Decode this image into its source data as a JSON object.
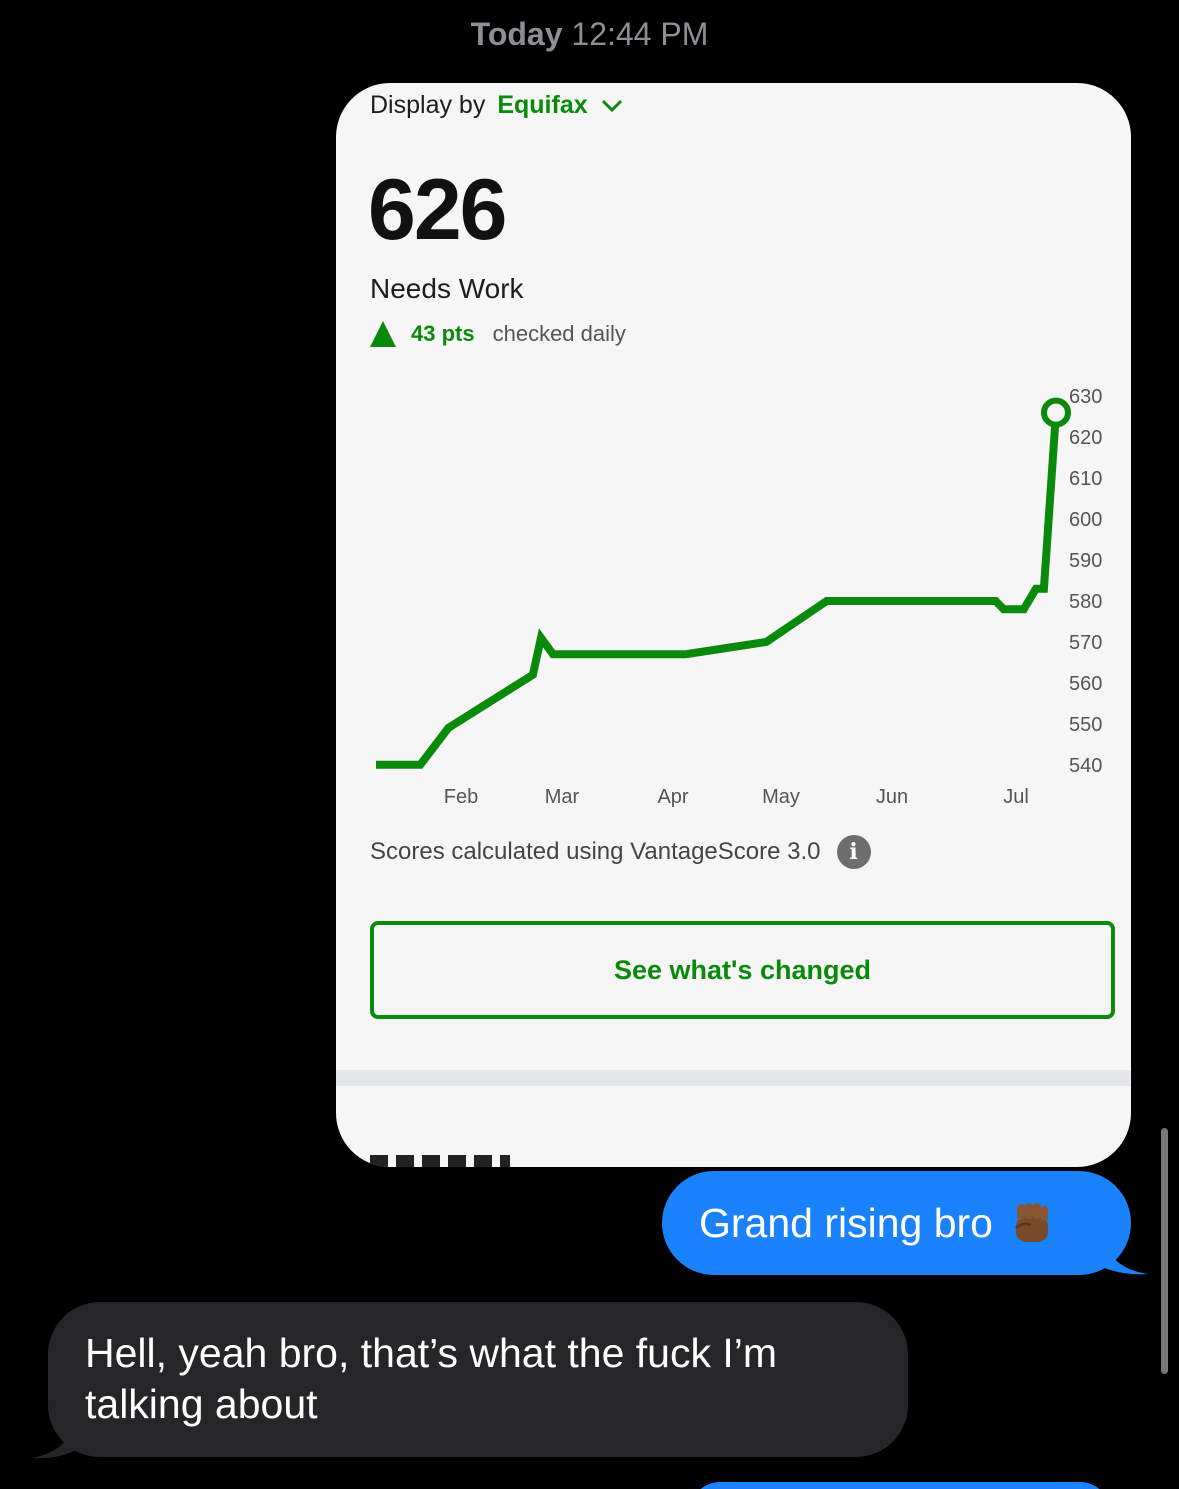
{
  "timestamp": {
    "day": "Today",
    "time": "12:44 PM"
  },
  "card": {
    "display_by_label": "Display by",
    "provider": "Equifax",
    "score": "626",
    "rating": "Needs Work",
    "change_pts": "43 pts",
    "change_note": "checked daily",
    "scores_note": "Scores calculated using VantageScore 3.0",
    "info_icon_glyph": "i",
    "see_button_label": "See what's changed"
  },
  "chart_data": {
    "type": "line",
    "title": "",
    "xlabel": "",
    "ylabel": "",
    "x_ticks": [
      "Feb",
      "Mar",
      "Apr",
      "May",
      "Jun",
      "Jul"
    ],
    "y_ticks": [
      630,
      620,
      610,
      600,
      590,
      580,
      570,
      560,
      550,
      540
    ],
    "ylim": [
      538,
      632
    ],
    "axis_side": "right",
    "grid": false,
    "series": [
      {
        "color": "#0a8a0a",
        "points": [
          {
            "x": "Jan 21",
            "y": 540
          },
          {
            "x": "Feb 1",
            "y": 540
          },
          {
            "x": "Feb 8",
            "y": 549
          },
          {
            "x": "Mar 1",
            "y": 562
          },
          {
            "x": "Mar 3",
            "y": 571
          },
          {
            "x": "Mar 6",
            "y": 567
          },
          {
            "x": "Apr 8",
            "y": 567
          },
          {
            "x": "Apr 28",
            "y": 570
          },
          {
            "x": "May 13",
            "y": 580
          },
          {
            "x": "Jun 24",
            "y": 580
          },
          {
            "x": "Jun 26",
            "y": 578
          },
          {
            "x": "Jul 1",
            "y": 578
          },
          {
            "x": "Jul 4",
            "y": 583
          },
          {
            "x": "Jul 6",
            "y": 583
          },
          {
            "x": "Jul 9",
            "y": 626
          }
        ],
        "endpoint_marker": "open-circle"
      }
    ]
  },
  "messages": {
    "sent_1": "Grand rising bro",
    "sent_1_emoji": "raised-fist-medium-dark-skin",
    "received_1": "Hell, yeah bro, that’s what the fuck I’m talking about"
  },
  "colors": {
    "accent_green": "#0a8a0a",
    "sent_bubble": "#1982fc",
    "received_bubble": "#262628",
    "background": "#000000"
  }
}
